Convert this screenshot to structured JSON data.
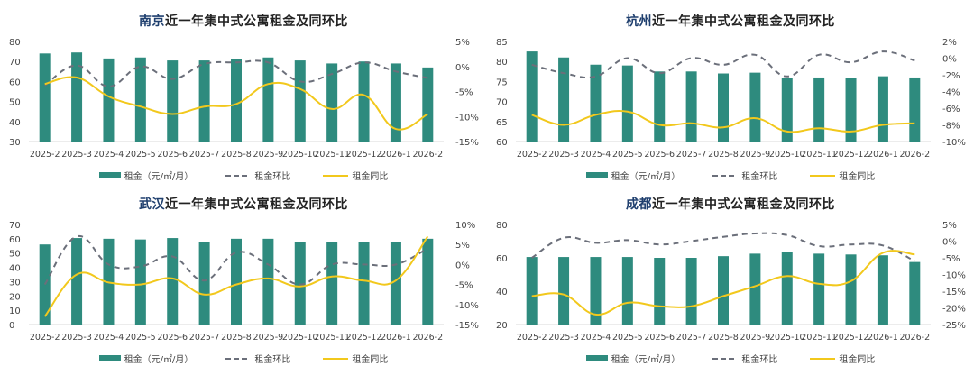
{
  "legend": {
    "rent": "租金（元/㎡/月）",
    "mom": "租金环比",
    "yoy": "租金同比"
  },
  "title_suffix": "近一年集中式公寓租金及同环比",
  "colors": {
    "bar": "#2e8b7e",
    "mom": "#6b6f7a",
    "yoy": "#f2c81c",
    "city_title": "#1f3f6e",
    "axis": "#d9d9d9",
    "tick_text": "#444444"
  },
  "chart_data": [
    {
      "type": "bar",
      "city": "南京",
      "title": "南京近一年集中式公寓租金及同环比",
      "categories": [
        "2025-2",
        "2025-3",
        "2025-4",
        "2025-5",
        "2025-6",
        "2025-7",
        "2025-8",
        "2025-9",
        "2025-10",
        "2025-11",
        "2025-12",
        "2026-1",
        "2026-2"
      ],
      "left_axis": {
        "min": 30,
        "max": 80,
        "ticks": [
          "30",
          "40",
          "50",
          "60",
          "70",
          "80"
        ]
      },
      "right_axis": {
        "min": -15,
        "max": 5,
        "ticks": [
          "-15%",
          "-10%",
          "-5%",
          "0%",
          "5%"
        ]
      },
      "series": [
        {
          "name": "租金（元/㎡/月）",
          "type": "bar",
          "axis": "left",
          "values": [
            74,
            74.5,
            71.5,
            72,
            70.5,
            70.5,
            71,
            72,
            70.5,
            69,
            70,
            69,
            67
          ]
        },
        {
          "name": "租金环比",
          "type": "line",
          "style": "dashed",
          "axis": "right",
          "values": [
            -3.8,
            0.2,
            -4,
            0,
            -2.5,
            0.5,
            0.8,
            0.8,
            -3,
            -1.5,
            0.8,
            -1,
            -2.3
          ]
        },
        {
          "name": "租金同比",
          "type": "line",
          "style": "solid",
          "axis": "right",
          "values": [
            -3.5,
            -2.2,
            -6,
            -8,
            -9.5,
            -8,
            -7.5,
            -3.5,
            -4.5,
            -8.5,
            -5.7,
            -12.5,
            -9.5
          ]
        }
      ]
    },
    {
      "type": "bar",
      "city": "杭州",
      "title": "杭州近一年集中式公寓租金及同环比",
      "categories": [
        "2025-2",
        "2025-3",
        "2025-4",
        "2025-5",
        "2025-6",
        "2025-7",
        "2025-8",
        "2025-9",
        "2025-10",
        "2025-11",
        "2025-12",
        "2026-1",
        "2026-2"
      ],
      "left_axis": {
        "min": 60,
        "max": 85,
        "ticks": [
          "60",
          "65",
          "70",
          "75",
          "80",
          "85"
        ]
      },
      "right_axis": {
        "min": -10,
        "max": 2,
        "ticks": [
          "-10%",
          "-8%",
          "-6%",
          "-4%",
          "-2%",
          "0%",
          "2%"
        ]
      },
      "series": [
        {
          "name": "租金（元/㎡/月）",
          "type": "bar",
          "axis": "left",
          "values": [
            82.5,
            81,
            79.2,
            79,
            77.5,
            77.5,
            77,
            77.2,
            75.8,
            76,
            75.8,
            76.3,
            76
          ]
        },
        {
          "name": "租金环比",
          "type": "line",
          "style": "dashed",
          "axis": "right",
          "values": [
            -0.8,
            -1.8,
            -2.2,
            0,
            -1.8,
            0,
            -0.8,
            0.4,
            -2.2,
            0.4,
            -0.5,
            0.8,
            -0.3
          ]
        },
        {
          "name": "租金同比",
          "type": "line",
          "style": "solid",
          "axis": "right",
          "values": [
            -6.8,
            -8,
            -6.8,
            -6.4,
            -8,
            -7.8,
            -8.3,
            -7.2,
            -8.8,
            -8.4,
            -8.8,
            -8,
            -7.8
          ]
        }
      ]
    },
    {
      "type": "bar",
      "city": "武汉",
      "title": "武汉近一年集中式公寓租金及同环比",
      "categories": [
        "2025-2",
        "2025-3",
        "2025-4",
        "2025-5",
        "2025-6",
        "2025-7",
        "2025-8",
        "2025-9",
        "2025-10",
        "2025-11",
        "2025-12",
        "2026-1",
        "2026-2"
      ],
      "left_axis": {
        "min": 0,
        "max": 70,
        "ticks": [
          "0",
          "10",
          "20",
          "30",
          "40",
          "50",
          "60",
          "70"
        ]
      },
      "right_axis": {
        "min": -15,
        "max": 10,
        "ticks": [
          "-15%",
          "-10%",
          "-5%",
          "0%",
          "5%",
          "10%"
        ]
      },
      "series": [
        {
          "name": "租金（元/㎡/月）",
          "type": "bar",
          "axis": "left",
          "values": [
            56,
            60.5,
            60,
            59.5,
            60.5,
            58,
            60,
            60,
            57.5,
            57.5,
            57.5,
            57.5,
            60
          ]
        },
        {
          "name": "租金环比",
          "type": "line",
          "style": "dashed",
          "axis": "right",
          "values": [
            -5,
            7,
            0,
            -0.5,
            2,
            -4,
            3,
            0,
            -5,
            0,
            0,
            0,
            4
          ]
        },
        {
          "name": "租金同比",
          "type": "line",
          "style": "solid",
          "axis": "right",
          "values": [
            -13,
            -2.5,
            -4.5,
            -5,
            -3.5,
            -7.5,
            -5,
            -3.5,
            -5.5,
            -3,
            -4,
            -4,
            7
          ]
        }
      ]
    },
    {
      "type": "bar",
      "city": "成都",
      "title": "成都近一年集中式公寓租金及同环比",
      "categories": [
        "2025-2",
        "2025-3",
        "2025-4",
        "2025-5",
        "2025-6",
        "2025-7",
        "2025-8",
        "2025-9",
        "2025-10",
        "2025-11",
        "2025-12",
        "2026-1",
        "2026-2"
      ],
      "left_axis": {
        "min": 20,
        "max": 80,
        "ticks": [
          "20",
          "40",
          "60",
          "80"
        ]
      },
      "right_axis": {
        "min": -25,
        "max": 5,
        "ticks": [
          "-25%",
          "-20%",
          "-15%",
          "-10%",
          "-5%",
          "0%",
          "5%"
        ]
      },
      "series": [
        {
          "name": "租金（元/㎡/月）",
          "type": "bar",
          "axis": "left",
          "values": [
            60.5,
            60.5,
            60.5,
            60.5,
            60,
            60,
            61,
            62.5,
            63.5,
            62.5,
            62,
            61.5,
            57.5
          ]
        },
        {
          "name": "租金环比",
          "type": "line",
          "style": "dashed",
          "axis": "right",
          "values": [
            -5,
            1,
            -0.5,
            0.3,
            -1,
            0,
            1.3,
            2.3,
            1.8,
            -1.5,
            -1,
            -1.3,
            -6
          ]
        },
        {
          "name": "租金同比",
          "type": "line",
          "style": "solid",
          "axis": "right",
          "values": [
            -16.5,
            -16,
            -22,
            -18.5,
            -19.5,
            -19.5,
            -16.5,
            -13.5,
            -10.5,
            -12.8,
            -12,
            -3.5,
            -4
          ]
        }
      ]
    }
  ]
}
